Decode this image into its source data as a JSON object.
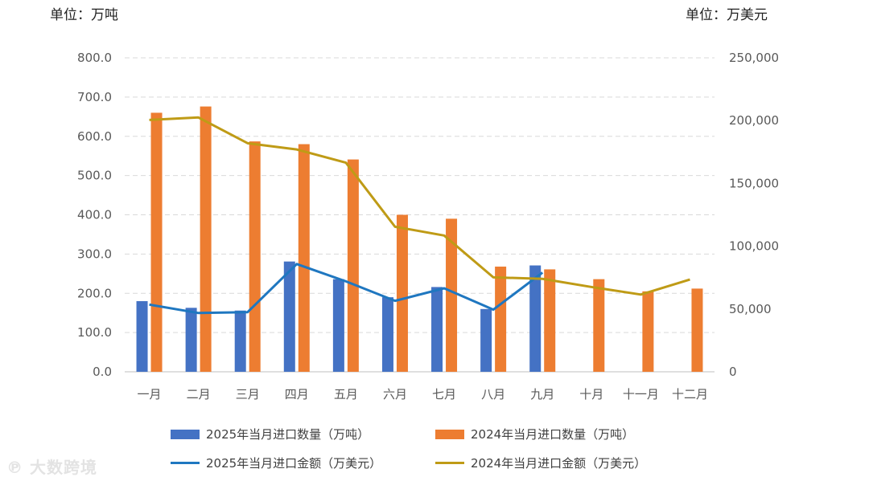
{
  "units": {
    "left": "单位：万吨",
    "right": "单位：万美元"
  },
  "watermark": "大数跨境",
  "chart_data": {
    "type": "bar",
    "categories": [
      "一月",
      "二月",
      "三月",
      "四月",
      "五月",
      "六月",
      "七月",
      "八月",
      "九月",
      "十月",
      "十一月",
      "十二月"
    ],
    "y_left": {
      "range": [
        0,
        800
      ],
      "ticks": [
        "0.0",
        "100.0",
        "200.0",
        "300.0",
        "400.0",
        "500.0",
        "600.0",
        "700.0",
        "800.0"
      ],
      "unit": "万吨"
    },
    "y_right": {
      "range": [
        0,
        250000
      ],
      "ticks": [
        "0",
        "50,000",
        "100,000",
        "150,000",
        "200,000",
        "250,000"
      ],
      "unit": "万美元"
    },
    "grid": "horizontal-dashed",
    "legend_position": "bottom",
    "series": [
      {
        "name": "2025年当月进口数量（万吨）",
        "type": "bar",
        "axis": "left",
        "color": "#4472C4",
        "values": [
          180,
          163,
          156,
          281,
          236,
          190,
          216,
          160,
          271,
          null,
          null,
          null
        ]
      },
      {
        "name": "2024年当月进口数量（万吨）",
        "type": "bar",
        "axis": "left",
        "color": "#ED7D31",
        "values": [
          660,
          676,
          587,
          580,
          541,
          400,
          390,
          268,
          261,
          236,
          205,
          212
        ]
      },
      {
        "name": "2025年当月进口金额（万美元）",
        "type": "line",
        "axis": "right",
        "color": "#1F77C0",
        "values": [
          53500,
          46800,
          47500,
          85800,
          72000,
          56500,
          66500,
          49500,
          79000,
          null,
          null,
          null
        ]
      },
      {
        "name": "2024年当月进口金额（万美元）",
        "type": "line",
        "axis": "right",
        "color": "#BF9B16",
        "values": [
          200500,
          202500,
          182000,
          177000,
          166500,
          115500,
          108500,
          75200,
          74000,
          67500,
          61500,
          73500
        ]
      }
    ]
  }
}
